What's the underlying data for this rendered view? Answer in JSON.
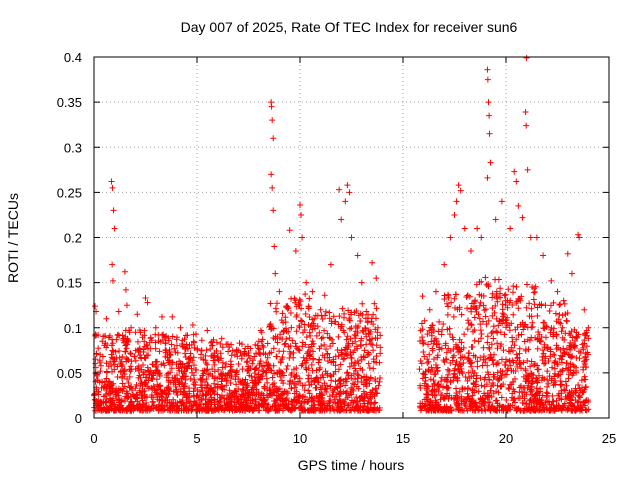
{
  "chart_data": {
    "type": "scatter",
    "title": "Day 007 of 2025, Rate Of TEC Index for receiver sun6",
    "xlabel": "GPS time / hours",
    "ylabel": "ROTI / TECUs",
    "xlim": [
      0,
      25
    ],
    "ylim": [
      0,
      0.4
    ],
    "x_ticks": [
      "0",
      "5",
      "10",
      "15",
      "20",
      "25"
    ],
    "y_ticks": [
      "0",
      "0.05",
      "0.1",
      "0.15",
      "0.2",
      "0.25",
      "0.3",
      "0.35",
      "0.4"
    ],
    "grid": true,
    "marker": "+",
    "marker_color": "#ff0000",
    "data_gap_hours": [
      13.9,
      15.8
    ],
    "series": [
      {
        "points": [
          [
            0.05,
            0.124
          ],
          [
            0.1,
            0.118
          ],
          [
            0.2,
            0.092
          ],
          [
            0.4,
            0.085
          ],
          [
            0.6,
            0.11
          ],
          [
            0.85,
            0.262
          ],
          [
            0.9,
            0.255
          ],
          [
            0.95,
            0.23
          ],
          [
            1.0,
            0.21
          ],
          [
            0.88,
            0.17
          ],
          [
            0.92,
            0.152
          ],
          [
            1.2,
            0.118
          ],
          [
            1.5,
            0.162
          ],
          [
            1.55,
            0.142
          ],
          [
            1.6,
            0.125
          ],
          [
            1.8,
            0.1
          ],
          [
            2.1,
            0.115
          ],
          [
            2.5,
            0.133
          ],
          [
            2.6,
            0.128
          ],
          [
            3.0,
            0.1
          ],
          [
            3.3,
            0.112
          ],
          [
            3.5,
            0.09
          ],
          [
            3.8,
            0.112
          ],
          [
            4.2,
            0.1
          ],
          [
            4.8,
            0.103
          ],
          [
            5.5,
            0.097
          ],
          [
            6.2,
            0.088
          ],
          [
            6.5,
            0.082
          ],
          [
            7.0,
            0.075
          ],
          [
            7.5,
            0.072
          ],
          [
            8.0,
            0.085
          ],
          [
            8.6,
            0.35
          ],
          [
            8.62,
            0.345
          ],
          [
            8.65,
            0.33
          ],
          [
            8.7,
            0.31
          ],
          [
            8.6,
            0.27
          ],
          [
            8.65,
            0.255
          ],
          [
            8.7,
            0.23
          ],
          [
            8.75,
            0.19
          ],
          [
            8.8,
            0.16
          ],
          [
            9.0,
            0.14
          ],
          [
            9.5,
            0.208
          ],
          [
            9.8,
            0.185
          ],
          [
            10.0,
            0.236
          ],
          [
            10.05,
            0.225
          ],
          [
            10.1,
            0.2
          ],
          [
            10.3,
            0.15
          ],
          [
            10.6,
            0.14
          ],
          [
            11.0,
            0.12
          ],
          [
            11.2,
            0.136
          ],
          [
            11.5,
            0.17
          ],
          [
            11.9,
            0.253
          ],
          [
            12.0,
            0.22
          ],
          [
            12.2,
            0.24
          ],
          [
            12.3,
            0.258
          ],
          [
            12.4,
            0.25
          ],
          [
            12.5,
            0.2
          ],
          [
            12.8,
            0.18
          ],
          [
            13.0,
            0.15
          ],
          [
            13.5,
            0.172
          ],
          [
            13.7,
            0.155
          ],
          [
            15.95,
            0.135
          ],
          [
            16.3,
            0.12
          ],
          [
            16.6,
            0.14
          ],
          [
            17.0,
            0.17
          ],
          [
            17.3,
            0.2
          ],
          [
            17.5,
            0.225
          ],
          [
            17.6,
            0.24
          ],
          [
            17.7,
            0.258
          ],
          [
            17.8,
            0.252
          ],
          [
            18.0,
            0.21
          ],
          [
            18.3,
            0.185
          ],
          [
            18.6,
            0.21
          ],
          [
            18.8,
            0.2
          ],
          [
            19.1,
            0.386
          ],
          [
            19.12,
            0.375
          ],
          [
            19.15,
            0.35
          ],
          [
            19.18,
            0.335
          ],
          [
            19.2,
            0.315
          ],
          [
            19.25,
            0.283
          ],
          [
            19.1,
            0.266
          ],
          [
            19.5,
            0.22
          ],
          [
            19.8,
            0.24
          ],
          [
            20.2,
            0.21
          ],
          [
            20.4,
            0.273
          ],
          [
            20.5,
            0.262
          ],
          [
            20.6,
            0.235
          ],
          [
            20.8,
            0.222
          ],
          [
            21.0,
            0.399
          ],
          [
            20.95,
            0.339
          ],
          [
            20.98,
            0.324
          ],
          [
            21.05,
            0.275
          ],
          [
            21.2,
            0.2
          ],
          [
            21.5,
            0.2
          ],
          [
            21.8,
            0.18
          ],
          [
            22.2,
            0.152
          ],
          [
            22.5,
            0.14
          ],
          [
            22.8,
            0.13
          ],
          [
            23.0,
            0.182
          ],
          [
            23.2,
            0.16
          ],
          [
            23.5,
            0.203
          ],
          [
            23.55,
            0.2
          ],
          [
            23.8,
            0.12
          ],
          [
            24.0,
            0.1
          ]
        ]
      }
    ],
    "dense_band": [
      [
        0.0,
        1.0,
        0.085
      ],
      [
        1.0,
        3.0,
        0.09
      ],
      [
        3.0,
        5.0,
        0.085
      ],
      [
        5.0,
        6.0,
        0.08
      ],
      [
        6.0,
        8.0,
        0.075
      ],
      [
        8.0,
        8.5,
        0.09
      ],
      [
        8.5,
        9.5,
        0.12
      ],
      [
        9.5,
        10.5,
        0.13
      ],
      [
        10.5,
        12.0,
        0.11
      ],
      [
        12.0,
        13.9,
        0.12
      ],
      [
        15.8,
        17.0,
        0.1
      ],
      [
        17.0,
        18.5,
        0.13
      ],
      [
        18.5,
        20.0,
        0.15
      ],
      [
        20.0,
        21.5,
        0.14
      ],
      [
        21.5,
        23.0,
        0.12
      ],
      [
        23.0,
        24.0,
        0.09
      ]
    ]
  }
}
